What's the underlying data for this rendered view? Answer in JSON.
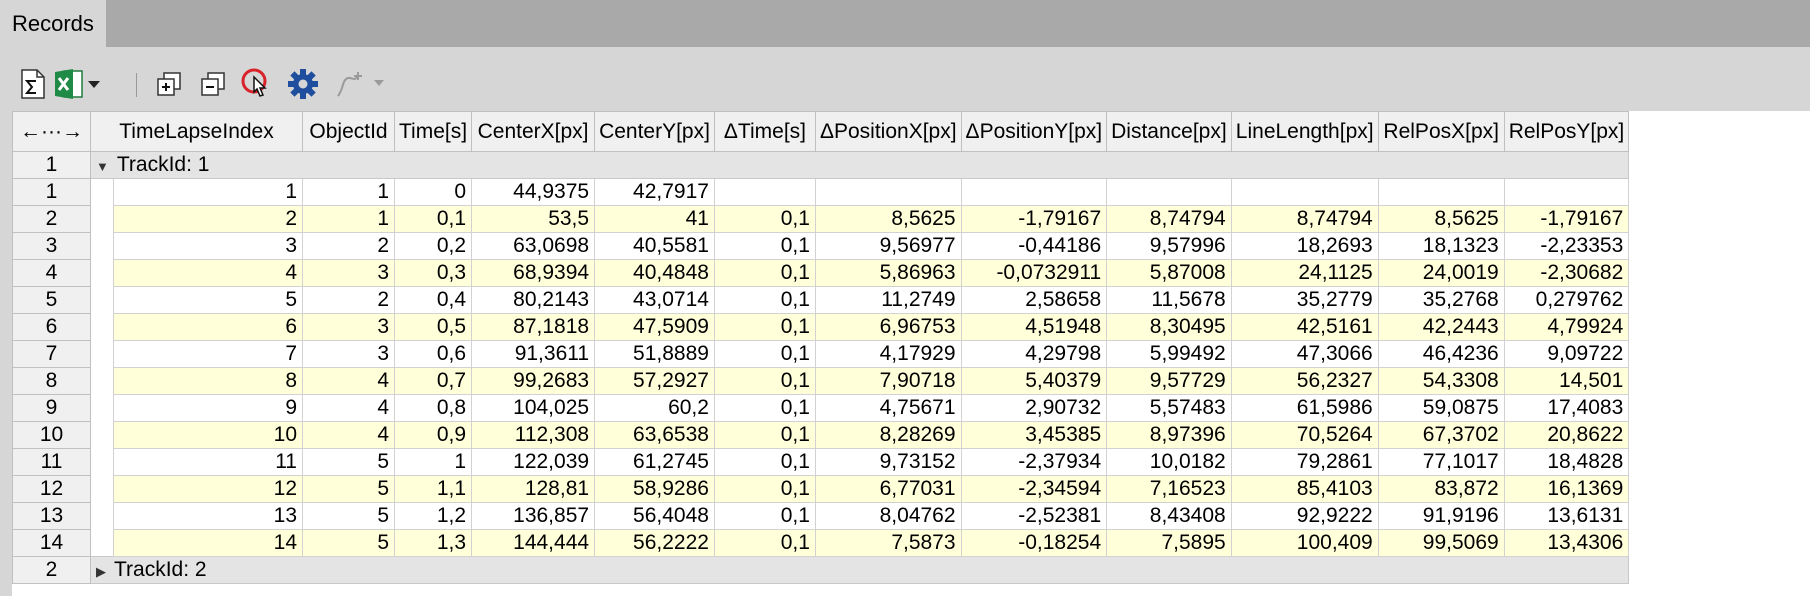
{
  "tab": {
    "label": "Records"
  },
  "toolbar": {
    "icons": [
      "sum-icon",
      "excel-icon",
      "dropdown-arrow-icon",
      "expand-all-icon",
      "collapse-all-icon",
      "pointer-click-icon",
      "gear-icon",
      "graph-add-icon"
    ]
  },
  "table": {
    "corner_label": "←···→",
    "columns": [
      "TimeLapseIndex",
      "ObjectId",
      "Time[s]",
      "CenterX[px]",
      "CenterY[px]",
      "ΔTime[s]",
      "ΔPositionX[px]",
      "ΔPositionY[px]",
      "Distance[px]",
      "LineLength[px]",
      "RelPosX[px]",
      "RelPosY[px]"
    ],
    "groups": [
      {
        "index": "1",
        "label": "TrackId: 1",
        "expanded": true,
        "rows": [
          {
            "n": "1",
            "cells": [
              "1",
              "1",
              "0",
              "44,9375",
              "42,7917",
              "",
              "",
              "",
              "",
              "",
              "",
              ""
            ]
          },
          {
            "n": "2",
            "cells": [
              "2",
              "1",
              "0,1",
              "53,5",
              "41",
              "0,1",
              "8,5625",
              "-1,79167",
              "8,74794",
              "8,74794",
              "8,5625",
              "-1,79167"
            ]
          },
          {
            "n": "3",
            "cells": [
              "3",
              "2",
              "0,2",
              "63,0698",
              "40,5581",
              "0,1",
              "9,56977",
              "-0,44186",
              "9,57996",
              "18,2693",
              "18,1323",
              "-2,23353"
            ]
          },
          {
            "n": "4",
            "cells": [
              "4",
              "3",
              "0,3",
              "68,9394",
              "40,4848",
              "0,1",
              "5,86963",
              "-0,0732911",
              "5,87008",
              "24,1125",
              "24,0019",
              "-2,30682"
            ]
          },
          {
            "n": "5",
            "cells": [
              "5",
              "2",
              "0,4",
              "80,2143",
              "43,0714",
              "0,1",
              "11,2749",
              "2,58658",
              "11,5678",
              "35,2779",
              "35,2768",
              "0,279762"
            ]
          },
          {
            "n": "6",
            "cells": [
              "6",
              "3",
              "0,5",
              "87,1818",
              "47,5909",
              "0,1",
              "6,96753",
              "4,51948",
              "8,30495",
              "42,5161",
              "42,2443",
              "4,79924"
            ]
          },
          {
            "n": "7",
            "cells": [
              "7",
              "3",
              "0,6",
              "91,3611",
              "51,8889",
              "0,1",
              "4,17929",
              "4,29798",
              "5,99492",
              "47,3066",
              "46,4236",
              "9,09722"
            ]
          },
          {
            "n": "8",
            "cells": [
              "8",
              "4",
              "0,7",
              "99,2683",
              "57,2927",
              "0,1",
              "7,90718",
              "5,40379",
              "9,57729",
              "56,2327",
              "54,3308",
              "14,501"
            ]
          },
          {
            "n": "9",
            "cells": [
              "9",
              "4",
              "0,8",
              "104,025",
              "60,2",
              "0,1",
              "4,75671",
              "2,90732",
              "5,57483",
              "61,5986",
              "59,0875",
              "17,4083"
            ]
          },
          {
            "n": "10",
            "cells": [
              "10",
              "4",
              "0,9",
              "112,308",
              "63,6538",
              "0,1",
              "8,28269",
              "3,45385",
              "8,97396",
              "70,5264",
              "67,3702",
              "20,8622"
            ]
          },
          {
            "n": "11",
            "cells": [
              "11",
              "5",
              "1",
              "122,039",
              "61,2745",
              "0,1",
              "9,73152",
              "-2,37934",
              "10,0182",
              "79,2861",
              "77,1017",
              "18,4828"
            ]
          },
          {
            "n": "12",
            "cells": [
              "12",
              "5",
              "1,1",
              "128,81",
              "58,9286",
              "0,1",
              "6,77031",
              "-2,34594",
              "7,16523",
              "85,4103",
              "83,872",
              "16,1369"
            ]
          },
          {
            "n": "13",
            "cells": [
              "13",
              "5",
              "1,2",
              "136,857",
              "56,4048",
              "0,1",
              "8,04762",
              "-2,52381",
              "8,43408",
              "92,9222",
              "91,9196",
              "13,6131"
            ]
          },
          {
            "n": "14",
            "cells": [
              "14",
              "5",
              "1,3",
              "144,444",
              "56,2222",
              "0,1",
              "7,5873",
              "-0,18254",
              "7,5895",
              "100,409",
              "99,5069",
              "13,4306"
            ]
          }
        ]
      },
      {
        "index": "2",
        "label": "TrackId: 2",
        "expanded": false,
        "rows": []
      }
    ]
  }
}
